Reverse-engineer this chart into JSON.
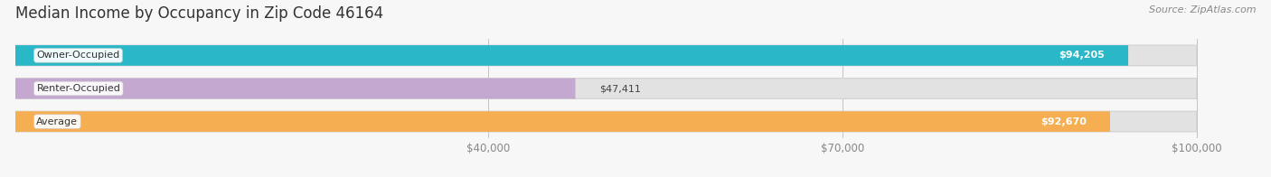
{
  "title": "Median Income by Occupancy in Zip Code 46164",
  "source": "Source: ZipAtlas.com",
  "categories": [
    "Owner-Occupied",
    "Renter-Occupied",
    "Average"
  ],
  "values": [
    94205,
    47411,
    92670
  ],
  "bar_colors": [
    "#2ab8c8",
    "#c4a8d0",
    "#f5ae52"
  ],
  "value_labels": [
    "$94,205",
    "$47,411",
    "$92,670"
  ],
  "xlim": [
    0,
    105000
  ],
  "xticks": [
    40000,
    70000,
    100000
  ],
  "xticklabels": [
    "$40,000",
    "$70,000",
    "$100,000"
  ],
  "bar_height": 0.62,
  "background_color": "#f7f7f7",
  "bar_bg_color": "#e8e8e8",
  "title_fontsize": 12,
  "label_fontsize": 8,
  "value_fontsize": 8,
  "tick_fontsize": 8.5,
  "source_fontsize": 8
}
